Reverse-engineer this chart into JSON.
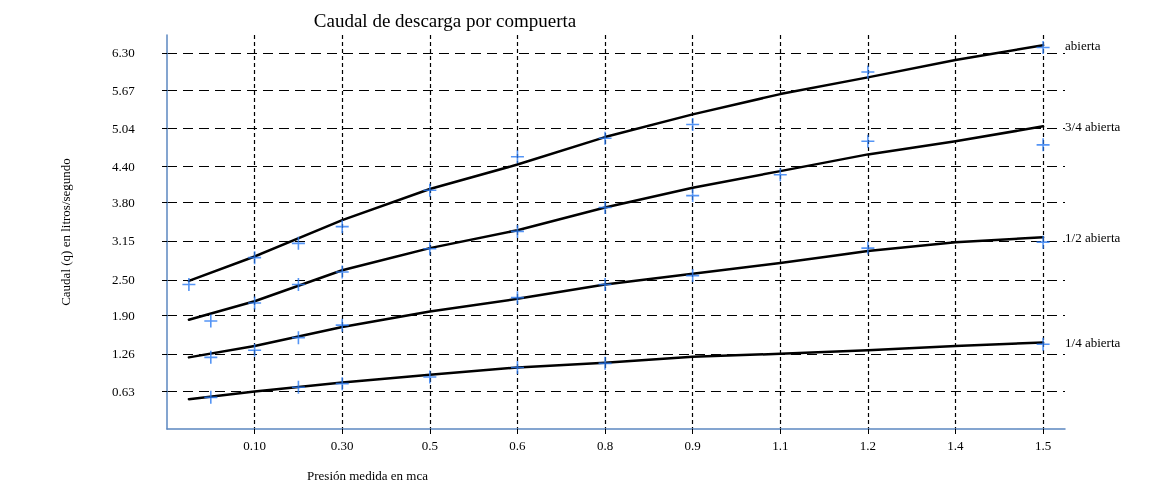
{
  "chart_data": {
    "type": "line",
    "title": "Caudal de descarga por compuerta",
    "xlabel": "Presión medida en mca",
    "ylabel": "Caudal (q) en litros/segundo",
    "categories": [
      null,
      null,
      null,
      null,
      "0.10",
      null,
      null,
      null,
      "0.30",
      null,
      null,
      null,
      "0.5",
      null,
      null,
      null,
      "0.6",
      null,
      null,
      null,
      "0.8",
      null,
      null,
      null,
      "0.9",
      null,
      null,
      null,
      "1.1",
      null,
      null,
      null,
      "1.2",
      null,
      null,
      null,
      "1.4",
      null,
      null,
      null,
      "1.5",
      null
    ],
    "ylim": [
      0,
      6.6
    ],
    "yticks": [
      0.63,
      1.26,
      {
        "value": 1.9,
        "label": "1.90"
      },
      {
        "value": 2.5,
        "label": "2.50"
      },
      3.15,
      {
        "value": 3.8,
        "label": "3.80"
      },
      {
        "value": 4.4,
        "label": "4.40"
      },
      5.04,
      5.67,
      {
        "value": 6.3,
        "label": "6.30"
      }
    ],
    "grid": true,
    "series": [
      {
        "name": "abierta",
        "color": "#000000",
        "marker": "none",
        "values": [
          null,
          2.48,
          null,
          null,
          2.89,
          null,
          null,
          null,
          3.5,
          null,
          null,
          null,
          4.02,
          null,
          null,
          null,
          4.43,
          null,
          null,
          null,
          4.89,
          null,
          null,
          null,
          5.27,
          null,
          null,
          null,
          5.61,
          null,
          null,
          null,
          5.89,
          null,
          null,
          null,
          6.18,
          null,
          null,
          null,
          6.43,
          null
        ]
      },
      {
        "name": "3/4 abierta",
        "color": "#000000",
        "marker": "none",
        "values": [
          null,
          1.83,
          null,
          null,
          2.14,
          null,
          null,
          null,
          2.66,
          null,
          null,
          null,
          3.03,
          null,
          null,
          null,
          3.33,
          null,
          null,
          null,
          3.71,
          null,
          null,
          null,
          4.04,
          null,
          null,
          null,
          4.32,
          null,
          null,
          null,
          4.6,
          null,
          null,
          null,
          4.82,
          null,
          null,
          null,
          5.07,
          null
        ]
      },
      {
        "name": "1/2 abierta",
        "color": "#000000",
        "marker": "none",
        "values": [
          null,
          1.2,
          null,
          null,
          1.39,
          null,
          null,
          null,
          1.71,
          null,
          null,
          null,
          1.97,
          null,
          null,
          null,
          2.18,
          null,
          null,
          null,
          2.42,
          null,
          null,
          null,
          2.6,
          null,
          null,
          null,
          2.78,
          null,
          null,
          null,
          2.98,
          null,
          null,
          null,
          3.13,
          null,
          null,
          null,
          3.21,
          null
        ]
      },
      {
        "name": "1/4 abierta",
        "color": "#000000",
        "marker": "none",
        "values": [
          null,
          0.5,
          null,
          null,
          0.63,
          null,
          null,
          null,
          0.78,
          null,
          null,
          null,
          0.91,
          null,
          null,
          null,
          1.03,
          null,
          null,
          null,
          1.11,
          null,
          null,
          null,
          1.21,
          null,
          null,
          null,
          1.26,
          null,
          null,
          null,
          1.32,
          null,
          null,
          null,
          1.39,
          null,
          null,
          null,
          1.45,
          null
        ]
      },
      {
        "type": "scatter",
        "color": "#2a7bf2",
        "marker": "cross",
        "values": [
          null,
          2.42,
          null,
          null,
          2.87,
          null,
          3.11,
          null,
          3.39,
          null,
          null,
          null,
          4.0,
          null,
          null,
          null,
          4.56,
          null,
          null,
          null,
          4.87,
          null,
          null,
          null,
          5.1,
          null,
          null,
          null,
          null,
          null,
          null,
          null,
          5.98,
          null,
          null,
          null,
          null,
          null,
          null,
          null,
          6.39,
          null
        ]
      },
      {
        "type": "scatter",
        "color": "#2a7bf2",
        "marker": "cross",
        "values": [
          null,
          null,
          1.81,
          null,
          2.11,
          null,
          2.42,
          null,
          2.63,
          null,
          null,
          null,
          3.02,
          null,
          null,
          null,
          3.31,
          null,
          null,
          null,
          3.71,
          null,
          null,
          null,
          3.91,
          null,
          null,
          null,
          4.26,
          null,
          null,
          null,
          4.82,
          null,
          null,
          null,
          null,
          null,
          null,
          null,
          4.76,
          null
        ]
      },
      {
        "type": "scatter",
        "color": "#2a7bf2",
        "marker": "cross",
        "values": [
          null,
          null,
          1.2,
          null,
          1.32,
          null,
          1.53,
          null,
          1.74,
          null,
          null,
          null,
          null,
          null,
          null,
          null,
          2.2,
          null,
          null,
          null,
          2.42,
          null,
          null,
          null,
          2.57,
          null,
          null,
          null,
          null,
          null,
          null,
          null,
          3.03,
          null,
          null,
          null,
          null,
          null,
          null,
          null,
          3.13,
          null
        ]
      },
      {
        "type": "scatter",
        "color": "#2a7bf2",
        "marker": "cross",
        "values": [
          null,
          null,
          0.53,
          null,
          null,
          null,
          0.7,
          null,
          0.76,
          null,
          null,
          null,
          0.87,
          null,
          null,
          null,
          1.03,
          null,
          null,
          null,
          1.1,
          null,
          null,
          null,
          null,
          null,
          null,
          null,
          null,
          null,
          null,
          null,
          null,
          null,
          null,
          null,
          null,
          null,
          null,
          null,
          1.42,
          null
        ]
      }
    ]
  }
}
